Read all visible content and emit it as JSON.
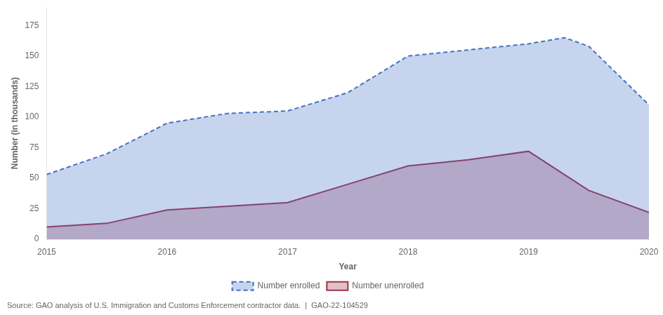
{
  "chart_data": {
    "type": "area",
    "xlabel": "Year",
    "ylabel": "Number (in thousands)",
    "annotations": [
      "Source: GAO analysis of U.S. Immigration and Customs Enforcement contractor data.  |  GAO-22-104529"
    ],
    "series": [
      {
        "name": "Number enrolled",
        "color": "#4472C4",
        "line_style": "dashed",
        "x": [
          2015,
          2015.5,
          2016,
          2016.5,
          2017,
          2017.5,
          2018,
          2018.5,
          2019,
          2019.3,
          2019.5,
          2020
        ],
        "values": [
          53,
          70,
          95,
          103,
          105,
          120,
          150,
          155,
          160,
          165,
          158,
          110
        ]
      },
      {
        "name": "Number unenrolled",
        "color": "#A0304A",
        "line_style": "solid",
        "x": [
          2015,
          2015.5,
          2016,
          2016.5,
          2017,
          2017.5,
          2018,
          2018.5,
          2019,
          2019.5,
          2020
        ],
        "values": [
          10,
          13,
          24,
          27,
          30,
          45,
          60,
          65,
          72,
          40,
          22
        ]
      }
    ],
    "xlim": [
      2015,
      2020
    ],
    "xticks": [
      2015,
      2016,
      2017,
      2018,
      2019,
      2020
    ],
    "ylim": [
      0,
      190
    ],
    "yticks": [
      0,
      25,
      50,
      75,
      100,
      125,
      150,
      175
    ],
    "grid": false,
    "legend": "bottom"
  }
}
